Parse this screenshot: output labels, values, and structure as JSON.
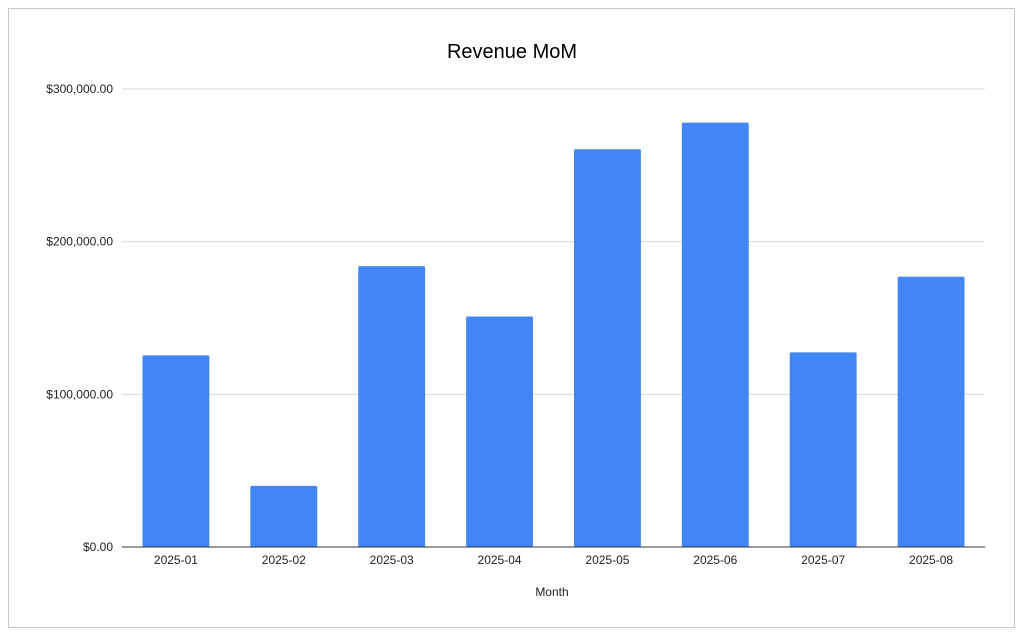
{
  "chart_data": {
    "type": "bar",
    "title": "Revenue MoM",
    "xlabel": "Month",
    "ylabel": "",
    "categories": [
      "2025-01",
      "2025-02",
      "2025-03",
      "2025-04",
      "2025-05",
      "2025-06",
      "2025-07",
      "2025-08"
    ],
    "series": [
      {
        "values": [
          125500,
          40000,
          184000,
          151000,
          260500,
          278000,
          127500,
          177000
        ]
      }
    ],
    "ylim": [
      0,
      300000
    ],
    "yticks": [
      0,
      100000,
      200000,
      300000
    ],
    "ytick_labels": [
      "$0.00",
      "$100,000.00",
      "$200,000.00",
      "$300,000.00"
    ],
    "grid": true,
    "legend": "none",
    "bar_color": "#4285f4",
    "gridline_color": "#d9d9d9",
    "axis_color": "#333333"
  }
}
